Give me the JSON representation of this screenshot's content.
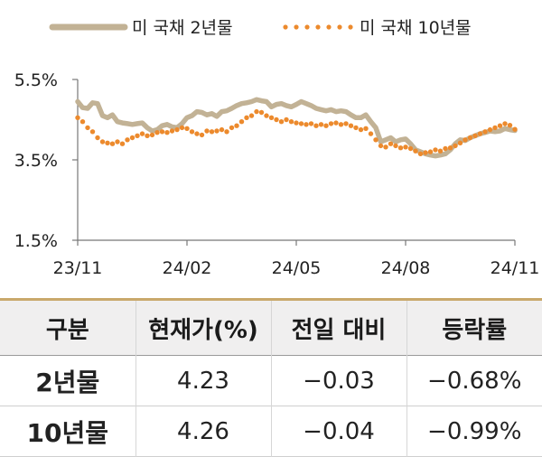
{
  "chart_data": {
    "type": "line",
    "x_ticks": [
      "23/11",
      "24/02",
      "24/05",
      "24/08",
      "24/11"
    ],
    "y_ticks": [
      "5.5%",
      "3.5%",
      "1.5%"
    ],
    "ylim": [
      1.5,
      5.5
    ],
    "series": [
      {
        "name": "미 국채 2년물",
        "color": "#c2b295",
        "style": "solid",
        "values": [
          4.95,
          4.8,
          4.78,
          4.92,
          4.9,
          4.6,
          4.55,
          4.62,
          4.45,
          4.42,
          4.4,
          4.38,
          4.4,
          4.42,
          4.3,
          4.22,
          4.25,
          4.35,
          4.38,
          4.32,
          4.3,
          4.4,
          4.55,
          4.6,
          4.7,
          4.68,
          4.62,
          4.65,
          4.58,
          4.7,
          4.72,
          4.78,
          4.85,
          4.9,
          4.92,
          4.95,
          5.0,
          4.97,
          4.95,
          4.82,
          4.88,
          4.9,
          4.85,
          4.82,
          4.88,
          4.95,
          4.9,
          4.85,
          4.78,
          4.75,
          4.72,
          4.75,
          4.7,
          4.72,
          4.7,
          4.62,
          4.55,
          4.55,
          4.62,
          4.45,
          4.3,
          3.95,
          4.0,
          4.05,
          3.95,
          4.0,
          4.02,
          3.9,
          3.75,
          3.7,
          3.65,
          3.62,
          3.6,
          3.62,
          3.65,
          3.75,
          3.9,
          4.0,
          3.98,
          4.05,
          4.1,
          4.15,
          4.18,
          4.22,
          4.2,
          4.22,
          4.28,
          4.25,
          4.23
        ]
      },
      {
        "name": "미 국채 10년물",
        "color": "#ec8a2d",
        "style": "dotted",
        "values": [
          4.55,
          4.45,
          4.3,
          4.2,
          4.05,
          3.95,
          3.92,
          3.9,
          3.95,
          3.9,
          4.0,
          4.05,
          4.1,
          4.15,
          4.1,
          4.12,
          4.18,
          4.2,
          4.18,
          4.22,
          4.25,
          4.3,
          4.28,
          4.2,
          4.15,
          4.12,
          4.22,
          4.2,
          4.22,
          4.25,
          4.2,
          4.3,
          4.35,
          4.45,
          4.55,
          4.6,
          4.7,
          4.68,
          4.6,
          4.55,
          4.5,
          4.45,
          4.5,
          4.45,
          4.42,
          4.4,
          4.38,
          4.4,
          4.35,
          4.38,
          4.35,
          4.4,
          4.42,
          4.38,
          4.4,
          4.35,
          4.3,
          4.25,
          4.28,
          4.15,
          4.0,
          3.85,
          3.82,
          3.9,
          3.85,
          3.8,
          3.82,
          3.78,
          3.72,
          3.65,
          3.68,
          3.7,
          3.75,
          3.72,
          3.78,
          3.8,
          3.85,
          3.92,
          4.0,
          4.05,
          4.1,
          4.15,
          4.2,
          4.25,
          4.3,
          4.35,
          4.4,
          4.36,
          4.26
        ]
      }
    ]
  },
  "table": {
    "headers": [
      "구분",
      "현재가(%)",
      "전일 대비",
      "등락률"
    ],
    "rows": [
      [
        "2년물",
        "4.23",
        "−0.03",
        "−0.68%"
      ],
      [
        "10년물",
        "4.26",
        "−0.04",
        "−0.99%"
      ]
    ]
  }
}
